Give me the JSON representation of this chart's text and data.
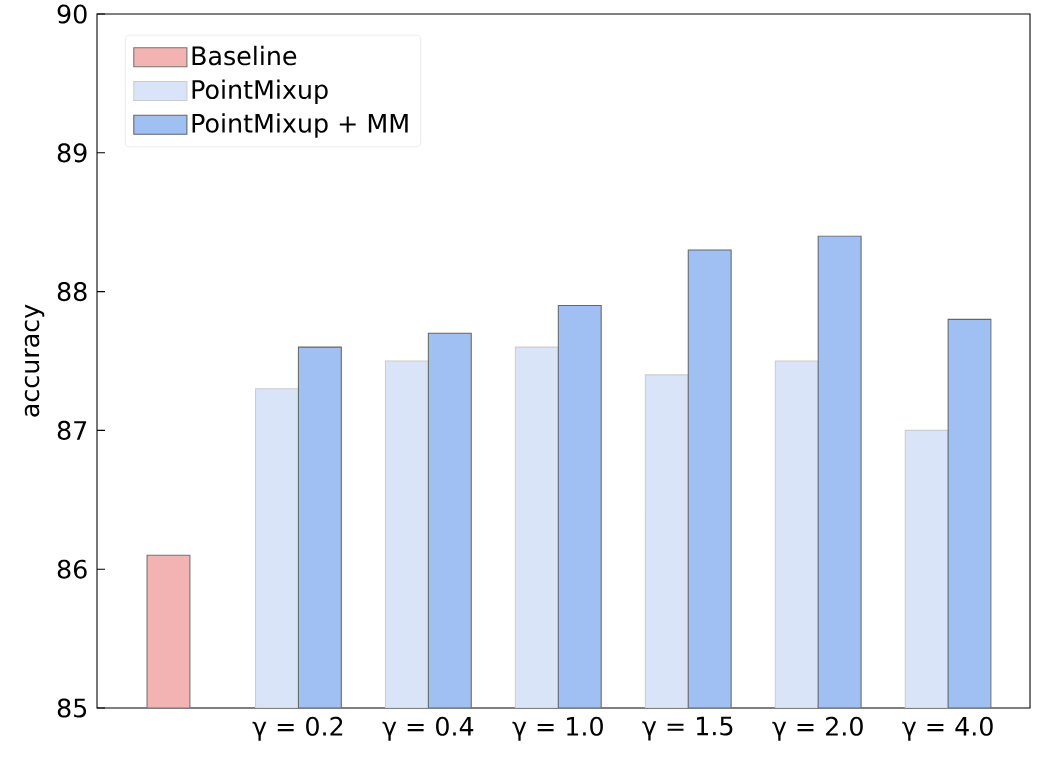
{
  "chart_data": {
    "type": "bar",
    "ylabel": "accuracy",
    "categories": [
      null,
      "γ = 0.2",
      "γ = 0.4",
      "γ = 1.0",
      "γ = 1.5",
      "γ = 2.0",
      "γ = 4.0"
    ],
    "series": [
      {
        "name": "Baseline",
        "color": "#f4b3b3",
        "values": [
          86.1,
          null,
          null,
          null,
          null,
          null,
          null
        ]
      },
      {
        "name": "PointMixup",
        "color": "#dae4f8",
        "values": [
          null,
          87.3,
          87.5,
          87.6,
          87.4,
          87.5,
          87.0
        ]
      },
      {
        "name": "PointMixup + MM",
        "color": "#a0bff2",
        "values": [
          null,
          87.6,
          87.7,
          87.9,
          88.3,
          88.4,
          87.8
        ]
      }
    ],
    "ylim": [
      85,
      90
    ],
    "yticks": [
      85,
      86,
      87,
      88,
      89,
      90
    ],
    "grid": false,
    "legend": "top left"
  }
}
